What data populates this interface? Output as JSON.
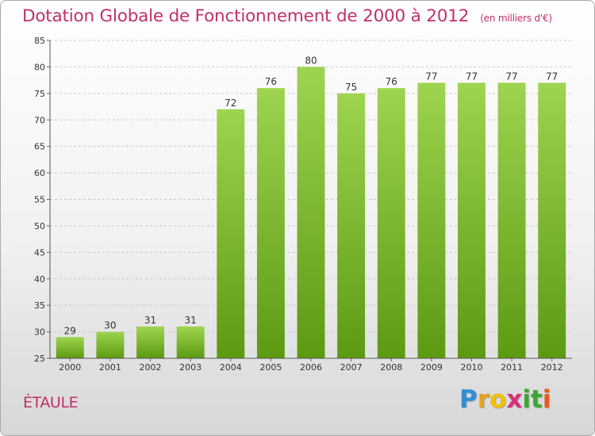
{
  "header": {
    "title": "Dotation Globale de Fonctionnement de 2000 à 2012",
    "subtitle": "(en milliers d'€)"
  },
  "place_name": "ÉTAULE",
  "logo": {
    "letters": [
      "P",
      "r",
      "o",
      "x",
      "i",
      "t",
      "i"
    ],
    "colors": [
      "#2f8fd6",
      "#e8a21a",
      "#f0c000",
      "#d92f7a",
      "#3aa635",
      "#3aa635",
      "#e85a1a"
    ]
  },
  "colors": {
    "bar_top": "#9ed44f",
    "bar_bottom": "#5c9a12",
    "title": "#c0306a"
  },
  "chart_data": {
    "type": "bar",
    "categories": [
      "2000",
      "2001",
      "2002",
      "2003",
      "2004",
      "2005",
      "2006",
      "2007",
      "2008",
      "2009",
      "2010",
      "2011",
      "2012"
    ],
    "values": [
      29,
      30,
      31,
      31,
      72,
      76,
      80,
      75,
      76,
      77,
      77,
      77,
      77
    ],
    "data_labels": [
      "29",
      "30",
      "31",
      "31",
      "72",
      "76",
      "80",
      "75",
      "76",
      "77",
      "77",
      "77",
      "77"
    ],
    "ylim": [
      25,
      85
    ],
    "yticks": [
      25,
      30,
      35,
      40,
      45,
      50,
      55,
      60,
      65,
      70,
      75,
      80,
      85
    ],
    "ytick_labels": [
      "25",
      "30",
      "35",
      "40",
      "45",
      "50",
      "55",
      "60",
      "65",
      "70",
      "75",
      "80",
      "85"
    ],
    "grid": "horizontal dashed"
  }
}
